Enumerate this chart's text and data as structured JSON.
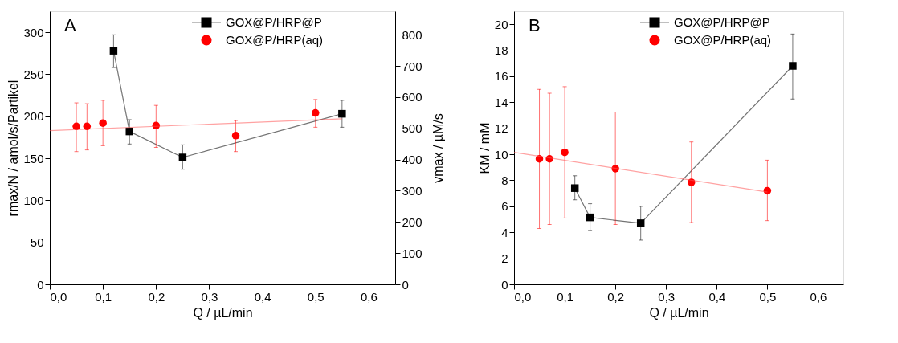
{
  "chart_data": [
    {
      "type": "line",
      "xlabel": "Q / µL/min",
      "ylabel": "rmax/N / amol/s/Partikel",
      "y2label": "vmax / µM/s",
      "annotations": [
        "A"
      ],
      "xlim": [
        0,
        0.65
      ],
      "xticks": [
        {
          "value": 0,
          "label": "0,0"
        },
        {
          "value": 0.1,
          "label": "0,1"
        },
        {
          "value": 0.2,
          "label": "0,2"
        },
        {
          "value": 0.3,
          "label": "0,3"
        },
        {
          "value": 0.4,
          "label": "0,4"
        },
        {
          "value": 0.5,
          "label": "0,5"
        },
        {
          "value": 0.6,
          "label": "0,6"
        }
      ],
      "ylim": [
        0,
        325
      ],
      "yticks": [
        0,
        50,
        100,
        150,
        200,
        250,
        300
      ],
      "y2lim": [
        0,
        875
      ],
      "y2ticks": [
        0,
        100,
        200,
        300,
        400,
        500,
        600,
        700,
        800
      ],
      "grid": false,
      "legend": "top right",
      "series": [
        {
          "name": "GOX@P/HRP@P",
          "type": "line",
          "marker": "square",
          "line_style": "solid",
          "color": "#000000",
          "x": [
            0.12,
            0.15,
            0.25,
            0.55
          ],
          "values": [
            278,
            182,
            151,
            203
          ],
          "errors": [
            [
              258,
              297
            ],
            [
              167,
              196
            ],
            [
              137,
              166
            ],
            [
              187,
              219
            ]
          ]
        },
        {
          "name": "GOX@P/HRP(aq)",
          "type": "scatter",
          "marker": "circle",
          "color": "#ff0000",
          "x": [
            0.05,
            0.07,
            0.1,
            0.2,
            0.35,
            0.5
          ],
          "values": [
            188,
            188,
            192,
            189,
            177,
            204
          ],
          "errors": [
            [
              158,
              216
            ],
            [
              160,
              215
            ],
            [
              165,
              219
            ],
            [
              163,
              213
            ],
            [
              158,
              195
            ],
            [
              187,
              220
            ]
          ]
        },
        {
          "type": "line",
          "marker": "none",
          "line_style": "solid",
          "color": "#ff5555",
          "x": [
            0,
            0.55
          ],
          "values": [
            183,
            197
          ]
        }
      ]
    },
    {
      "type": "line",
      "xlabel": "Q / µL/min",
      "ylabel": "KM / mM",
      "annotations": [
        "B"
      ],
      "xlim": [
        0,
        0.65
      ],
      "xticks": [
        {
          "value": 0,
          "label": "0,0"
        },
        {
          "value": 0.1,
          "label": "0,1"
        },
        {
          "value": 0.2,
          "label": "0,2"
        },
        {
          "value": 0.3,
          "label": "0,3"
        },
        {
          "value": 0.4,
          "label": "0,4"
        },
        {
          "value": 0.5,
          "label": "0,5"
        },
        {
          "value": 0.6,
          "label": "0,6"
        }
      ],
      "ylim": [
        0,
        21
      ],
      "yticks": [
        0,
        2,
        4,
        6,
        8,
        10,
        12,
        14,
        16,
        18,
        20
      ],
      "grid": false,
      "legend": "top right",
      "series": [
        {
          "name": "GOX@P/HRP@P",
          "type": "line",
          "marker": "square",
          "line_style": "solid",
          "color": "#000000",
          "x": [
            0.12,
            0.15,
            0.25,
            0.55
          ],
          "values": [
            7.4,
            5.15,
            4.7,
            16.8
          ],
          "errors": [
            [
              6.5,
              8.35
            ],
            [
              4.15,
              6.2
            ],
            [
              3.4,
              6.0
            ],
            [
              14.25,
              19.25
            ]
          ]
        },
        {
          "name": "GOX@P/HRP(aq)",
          "type": "scatter",
          "marker": "circle",
          "color": "#ff0000",
          "x": [
            0.05,
            0.07,
            0.1,
            0.2,
            0.35,
            0.5
          ],
          "values": [
            9.65,
            9.65,
            10.15,
            8.9,
            7.85,
            7.2
          ],
          "errors": [
            [
              4.3,
              15.0
            ],
            [
              4.6,
              14.7
            ],
            [
              5.1,
              15.2
            ],
            [
              4.6,
              13.25
            ],
            [
              4.75,
              10.95
            ],
            [
              4.9,
              9.55
            ]
          ]
        },
        {
          "type": "line",
          "marker": "none",
          "line_style": "solid",
          "color": "#ff5555",
          "x": [
            0,
            0.5
          ],
          "values": [
            10.15,
            7.1
          ]
        }
      ]
    }
  ]
}
